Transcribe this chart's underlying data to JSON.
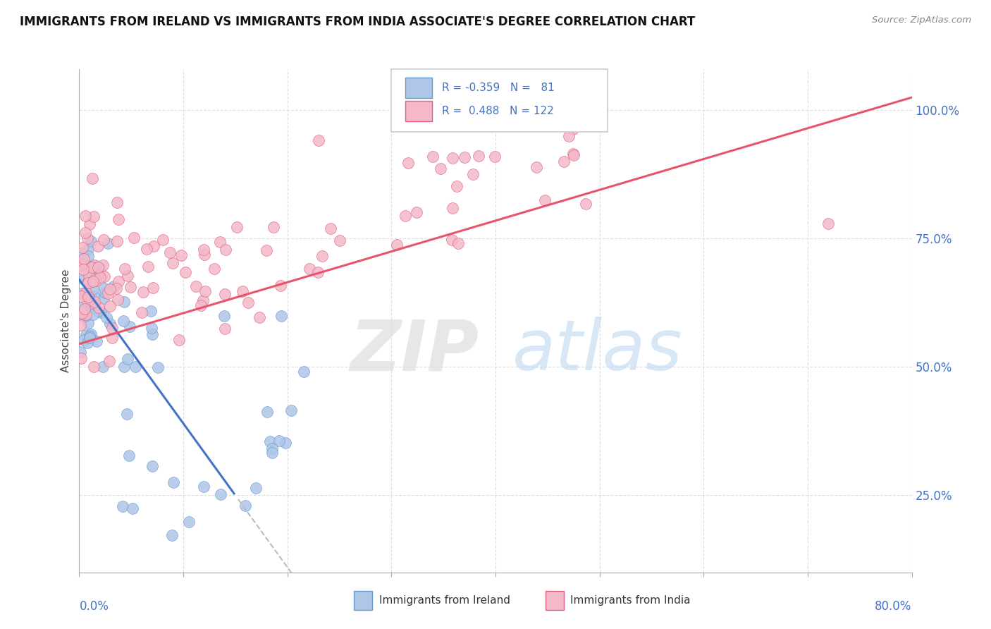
{
  "title": "IMMIGRANTS FROM IRELAND VS IMMIGRANTS FROM INDIA ASSOCIATE'S DEGREE CORRELATION CHART",
  "source": "Source: ZipAtlas.com",
  "ylabel_ticks": [
    "25.0%",
    "50.0%",
    "75.0%",
    "100.0%"
  ],
  "ylabel_values": [
    0.25,
    0.5,
    0.75,
    1.0
  ],
  "xlim": [
    0.0,
    0.8
  ],
  "ylim": [
    0.1,
    1.08
  ],
  "legend_ireland_R": -0.359,
  "legend_ireland_N": 81,
  "legend_india_R": 0.488,
  "legend_india_N": 122,
  "ireland_scatter_color": "#aec6e8",
  "ireland_edge_color": "#6699cc",
  "india_scatter_color": "#f4b8c8",
  "india_edge_color": "#e06080",
  "blue_line_color": "#4472c4",
  "pink_line_color": "#e8546a",
  "dashed_line_color": "#bbbbbb",
  "background_color": "#ffffff",
  "grid_color": "#dddddd",
  "title_fontsize": 12,
  "axis_label_color": "#4472c4",
  "ireland_seed": 7,
  "india_seed": 42
}
